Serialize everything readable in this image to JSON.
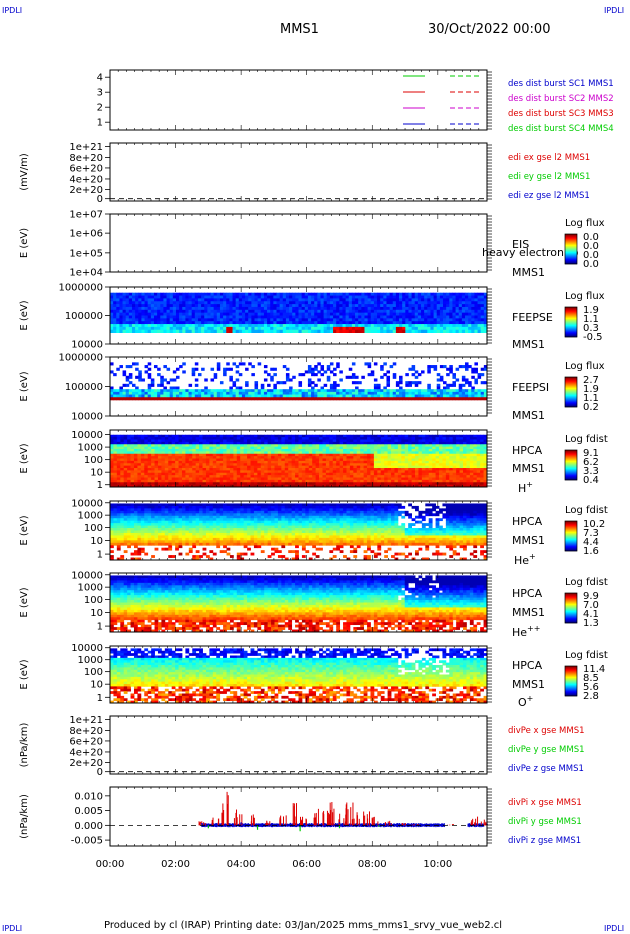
{
  "header": {
    "corner_tag": "IPDLI",
    "spacecraft": "MMS1",
    "date": "30/Oct/2022 00:00"
  },
  "footer": {
    "text": "Produced by cl (IRAP)   Printing date: 03/Jan/2025   mms_mms1_srvy_vue_web2.cl"
  },
  "colors": {
    "c1": "#00cc00",
    "c2": "#dd0000",
    "c3": "#cc00cc",
    "c4": "#0000cc"
  },
  "chart_data": [
    {
      "type": "line",
      "panel": "spacecraft legend",
      "yticks": [
        "4",
        "3",
        "2",
        "1"
      ],
      "ylim": [
        0.5,
        4.5
      ],
      "legend": [
        {
          "label": "des dist burst SC1 MMS1",
          "color": "#0000cc"
        },
        {
          "label": "des dist burst SC2 MMS2",
          "color": "#cc00cc"
        },
        {
          "label": "des dist burst SC3 MMS3",
          "color": "#dd0000"
        },
        {
          "label": "des dist burst SC4 MMS4",
          "color": "#00cc00"
        }
      ]
    },
    {
      "type": "line",
      "panel": "EDI electric field",
      "ylabel": "(mV/m)",
      "yticks": [
        "1e+21",
        "8e+20",
        "6e+20",
        "4e+20",
        "2e+20",
        "0"
      ],
      "ylim": [
        0,
        1e+21
      ],
      "series": [
        {
          "name": "edi ex gse l2 MMS1",
          "color": "#dd0000",
          "values": []
        },
        {
          "name": "edi ey gse l2 MMS1",
          "color": "#00cc00",
          "values": []
        },
        {
          "name": "edi ez gse l2 MMS1",
          "color": "#0000cc",
          "values": []
        }
      ]
    },
    {
      "type": "heatmap",
      "panel": "EIS",
      "ylabel": "E (eV)",
      "yticks": [
        "1e+07",
        "1e+06",
        "1e+05",
        "1e+04"
      ],
      "yscale": "log",
      "labels": [
        "EIS",
        "heavy electron to",
        "MMS1"
      ],
      "colorbar_title": "Log flux",
      "colorbar_ticks": [
        "0.0",
        "0.0",
        "0.0",
        "0.0"
      ]
    },
    {
      "type": "heatmap",
      "panel": "FEEPS electrons",
      "ylabel": "E (eV)",
      "yticks": [
        "1000000",
        "100000",
        "10000"
      ],
      "yscale": "log",
      "labels": [
        "FEEPSE",
        "MMS1"
      ],
      "colorbar_title": "Log flux",
      "colorbar_ticks": [
        "1.9",
        "1.1",
        "0.3",
        "-0.5"
      ]
    },
    {
      "type": "heatmap",
      "panel": "FEEPS ions",
      "ylabel": "E (eV)",
      "yticks": [
        "1000000",
        "100000",
        "10000"
      ],
      "yscale": "log",
      "labels": [
        "FEEPSI",
        "MMS1"
      ],
      "colorbar_title": "Log flux",
      "colorbar_ticks": [
        "2.7",
        "1.9",
        "1.1",
        "0.2"
      ]
    },
    {
      "type": "heatmap",
      "panel": "HPCA H+",
      "ylabel": "E (eV)",
      "yticks": [
        "10000",
        "1000",
        "100",
        "10",
        "1"
      ],
      "yscale": "log",
      "labels": [
        "HPCA",
        "MMS1"
      ],
      "species": "H",
      "species_sup": "+",
      "colorbar_title": "Log fdist",
      "colorbar_ticks": [
        "9.1",
        "6.2",
        "3.3",
        "0.4"
      ]
    },
    {
      "type": "heatmap",
      "panel": "HPCA He+",
      "ylabel": "E (eV)",
      "yticks": [
        "10000",
        "1000",
        "100",
        "10",
        "1"
      ],
      "yscale": "log",
      "labels": [
        "HPCA",
        "MMS1"
      ],
      "species": "He",
      "species_sup": "+",
      "colorbar_title": "Log fdist",
      "colorbar_ticks": [
        "10.2",
        "7.3",
        "4.4",
        "1.6"
      ]
    },
    {
      "type": "heatmap",
      "panel": "HPCA He++",
      "ylabel": "E (eV)",
      "yticks": [
        "10000",
        "1000",
        "100",
        "10",
        "1"
      ],
      "yscale": "log",
      "labels": [
        "HPCA",
        "MMS1"
      ],
      "species": "He",
      "species_sup": "++",
      "colorbar_title": "Log fdist",
      "colorbar_ticks": [
        "9.9",
        "7.0",
        "4.1",
        "1.3"
      ]
    },
    {
      "type": "heatmap",
      "panel": "HPCA O+",
      "ylabel": "E (eV)",
      "yticks": [
        "10000",
        "1000",
        "100",
        "10",
        "1"
      ],
      "yscale": "log",
      "labels": [
        "HPCA",
        "MMS1"
      ],
      "species": "O",
      "species_sup": "+",
      "colorbar_title": "Log fdist",
      "colorbar_ticks": [
        "11.4",
        "8.5",
        "5.6",
        "2.8"
      ]
    },
    {
      "type": "line",
      "panel": "electron pressure divergence",
      "ylabel": "(nPa/km)",
      "yticks": [
        "1e+21",
        "8e+20",
        "6e+20",
        "4e+20",
        "2e+20",
        "0"
      ],
      "ylim": [
        0,
        1e+21
      ],
      "series": [
        {
          "name": "divPe x gse MMS1",
          "color": "#dd0000",
          "values": []
        },
        {
          "name": "divPe y gse MMS1",
          "color": "#00cc00",
          "values": []
        },
        {
          "name": "divPe z gse MMS1",
          "color": "#0000cc",
          "values": []
        }
      ]
    },
    {
      "type": "line",
      "panel": "ion pressure divergence",
      "ylabel": "(nPa/km)",
      "yticks": [
        "0.010",
        "0.005",
        "0.000",
        "-0.005"
      ],
      "ylim": [
        -0.007,
        0.013
      ],
      "xticks": [
        "00:00",
        "02:00",
        "04:00",
        "06:00",
        "08:00",
        "10:00"
      ],
      "series": [
        {
          "name": "divPi x gse MMS1",
          "color": "#dd0000",
          "x": [
            2.8,
            3.2,
            3.5,
            3.9,
            4.3,
            4.8,
            5.3,
            5.6,
            5.9,
            6.3,
            6.6,
            6.8,
            7.1,
            7.3,
            7.5,
            7.8,
            8.1,
            8.5,
            8.9,
            9.3,
            10.4,
            11.1,
            11.4
          ],
          "values": [
            0.002,
            0.003,
            0.012,
            0.006,
            0.004,
            0.002,
            0.004,
            0.009,
            0.003,
            0.006,
            0.005,
            0.01,
            0.004,
            0.011,
            0.007,
            0.005,
            0.003,
            0.002,
            0.001,
            0.0005,
            0.0005,
            0.003,
            0.002
          ]
        },
        {
          "name": "divPi y gse MMS1",
          "color": "#00cc00",
          "x": [
            3.0,
            4.5,
            5.8,
            7.0,
            8.2
          ],
          "values": [
            -0.001,
            -0.0015,
            -0.002,
            -0.001,
            -0.0005
          ]
        },
        {
          "name": "divPi z gse MMS1",
          "color": "#0000cc",
          "x": [
            2.8,
            4.0,
            5.5,
            7.0,
            8.5,
            10.0,
            11.5
          ],
          "values": [
            0.0005,
            0.0008,
            0.0006,
            0.0008,
            0.0005,
            0.0003,
            0.0004
          ]
        }
      ]
    }
  ]
}
